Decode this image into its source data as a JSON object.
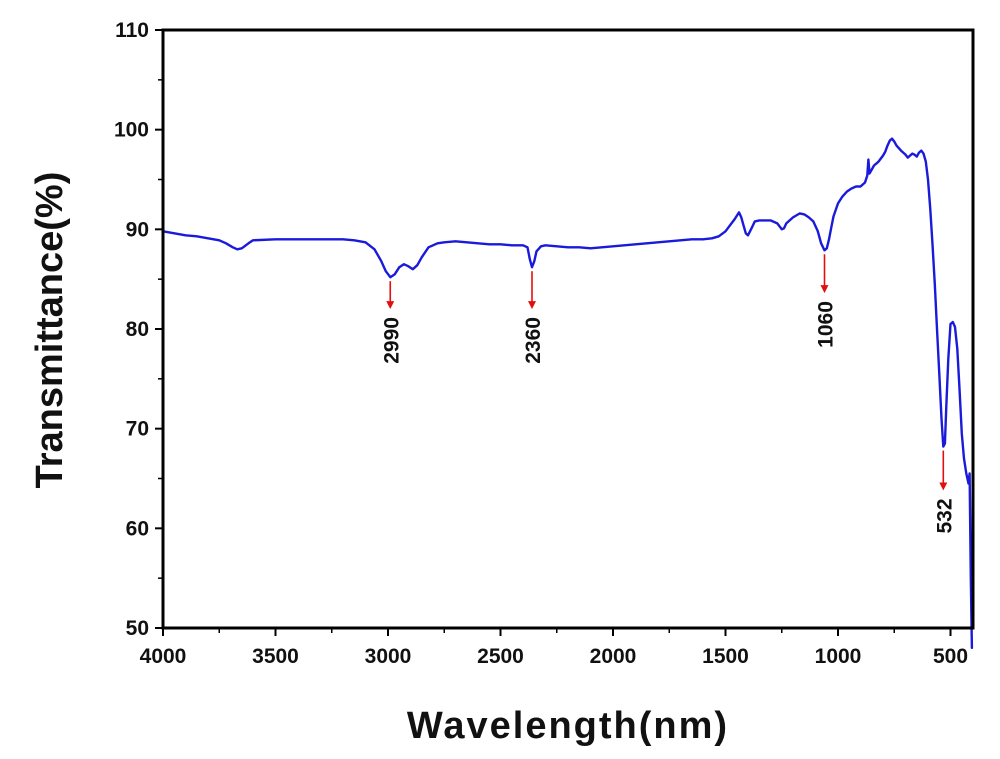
{
  "chart_data": {
    "type": "line",
    "title": "",
    "xlabel": "Wavelength(nm)",
    "ylabel": "Transmittance(%)",
    "xlim": [
      4000,
      400
    ],
    "ylim": [
      50,
      110
    ],
    "x_ticks": [
      4000,
      3500,
      3000,
      2500,
      2000,
      1500,
      1000,
      500
    ],
    "x_tick_labels": [
      "4000",
      "3500",
      "3000",
      "2500",
      "2000",
      "1500",
      "1000",
      "500"
    ],
    "y_ticks": [
      50,
      60,
      70,
      80,
      90,
      100,
      110
    ],
    "y_tick_labels": [
      "50",
      "60",
      "70",
      "80",
      "90",
      "100",
      "110"
    ],
    "grid": false,
    "line_color": "#1a1adb",
    "arrow_color": "#e01010",
    "series": [
      {
        "name": "Transmittance",
        "x": [
          4000,
          3950,
          3900,
          3850,
          3800,
          3750,
          3720,
          3690,
          3670,
          3650,
          3620,
          3600,
          3500,
          3400,
          3300,
          3200,
          3150,
          3100,
          3060,
          3030,
          3010,
          2990,
          2970,
          2950,
          2930,
          2910,
          2890,
          2870,
          2850,
          2820,
          2780,
          2750,
          2700,
          2650,
          2600,
          2550,
          2500,
          2450,
          2400,
          2380,
          2370,
          2360,
          2350,
          2340,
          2320,
          2300,
          2250,
          2200,
          2150,
          2100,
          2050,
          2000,
          1950,
          1900,
          1850,
          1800,
          1750,
          1700,
          1650,
          1600,
          1560,
          1530,
          1500,
          1480,
          1460,
          1440,
          1430,
          1420,
          1410,
          1400,
          1380,
          1370,
          1350,
          1330,
          1300,
          1270,
          1250,
          1240,
          1230,
          1200,
          1170,
          1150,
          1130,
          1110,
          1090,
          1075,
          1060,
          1050,
          1040,
          1030,
          1020,
          1000,
          980,
          960,
          940,
          920,
          900,
          880,
          870,
          865,
          860,
          850,
          840,
          830,
          820,
          800,
          790,
          780,
          770,
          760,
          750,
          740,
          720,
          700,
          690,
          680,
          670,
          660,
          650,
          640,
          630,
          620,
          610,
          600,
          590,
          580,
          570,
          560,
          550,
          540,
          532,
          525,
          518,
          510,
          500,
          490,
          480,
          470,
          460,
          450,
          440,
          430,
          420,
          415,
          410,
          405
        ],
        "y": [
          89.8,
          89.6,
          89.4,
          89.3,
          89.1,
          88.9,
          88.6,
          88.2,
          88.0,
          88.1,
          88.6,
          88.9,
          89.0,
          89.0,
          89.0,
          89.0,
          88.9,
          88.7,
          88.0,
          86.8,
          85.8,
          85.2,
          85.5,
          86.2,
          86.5,
          86.3,
          86.0,
          86.4,
          87.2,
          88.2,
          88.6,
          88.7,
          88.8,
          88.7,
          88.6,
          88.5,
          88.5,
          88.4,
          88.4,
          88.2,
          87.0,
          86.2,
          86.8,
          87.8,
          88.3,
          88.4,
          88.3,
          88.2,
          88.2,
          88.1,
          88.2,
          88.3,
          88.4,
          88.5,
          88.6,
          88.7,
          88.8,
          88.9,
          89.0,
          89.0,
          89.1,
          89.3,
          89.8,
          90.4,
          91.0,
          91.7,
          91.2,
          90.4,
          89.6,
          89.4,
          90.3,
          90.8,
          90.9,
          90.9,
          90.9,
          90.6,
          90.0,
          90.1,
          90.6,
          91.2,
          91.6,
          91.5,
          91.2,
          90.8,
          89.8,
          88.6,
          87.9,
          88.1,
          89.0,
          90.2,
          91.3,
          92.6,
          93.3,
          93.8,
          94.1,
          94.3,
          94.3,
          94.7,
          95.4,
          97.0,
          95.6,
          96.0,
          96.4,
          96.6,
          96.8,
          97.4,
          97.8,
          98.4,
          98.9,
          99.1,
          98.8,
          98.4,
          97.9,
          97.5,
          97.2,
          97.4,
          97.6,
          97.5,
          97.3,
          97.7,
          97.9,
          97.6,
          96.8,
          95.0,
          92.0,
          88.5,
          84.5,
          80.0,
          75.5,
          71.0,
          68.2,
          68.5,
          72.5,
          77.0,
          80.5,
          80.7,
          80.2,
          78.0,
          74.0,
          69.5,
          67.0,
          65.5,
          64.5,
          65.5,
          55.0,
          48.0
        ]
      }
    ],
    "annotations": [
      {
        "label": "2990",
        "x": 2990,
        "y_start": 85.2,
        "y_end": 82.0
      },
      {
        "label": "2360",
        "x": 2360,
        "y_start": 86.2,
        "y_end": 82.0
      },
      {
        "label": "1060",
        "x": 1060,
        "y_start": 87.9,
        "y_end": 83.6
      },
      {
        "label": "532",
        "x": 532,
        "y_start": 68.2,
        "y_end": 63.8
      }
    ]
  }
}
